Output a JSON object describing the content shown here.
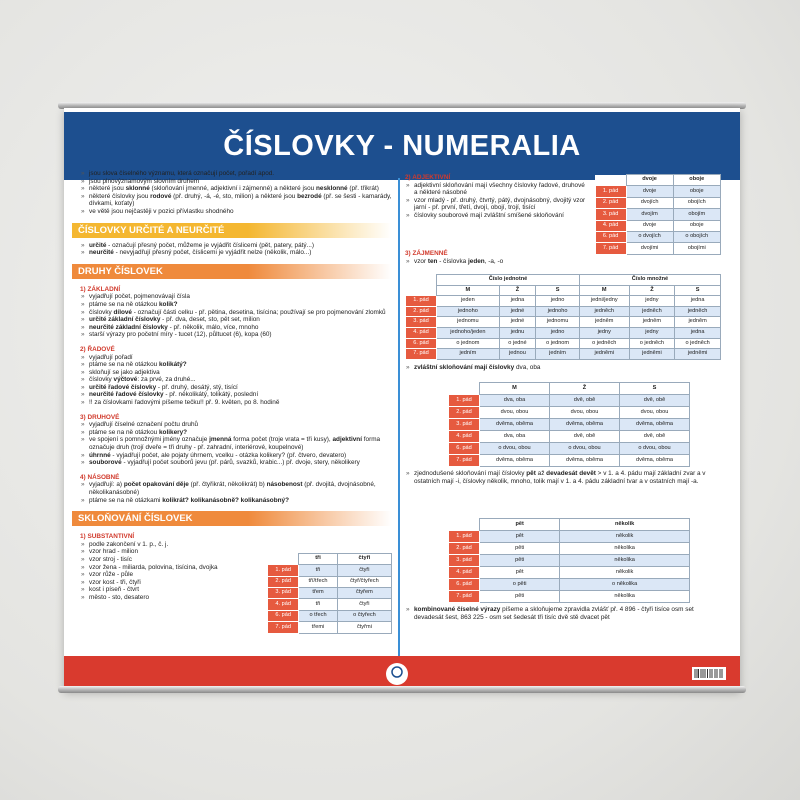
{
  "header": {
    "title": [
      "ČÍSLOVKY",
      " - NUMERALIA"
    ]
  },
  "left": [
    {
      "bullets": [
        [
          "jsou slova číselného významu, která označují počet, pořadí apod."
        ],
        [
          "jsou plnovýznamovým slovním druhem"
        ],
        [
          "některé jsou ",
          "sklonné",
          " (skloňování jmenné, adjektivní i zájmenné) a některé jsou ",
          "nesklonné",
          " (př. třikrát)"
        ],
        [
          "některé číslovky jsou ",
          "rodové",
          " (př. druhý, -á, -é, sto, milion) a některé jsou ",
          "bezrodé",
          " (př. se šesti - kamarády, dívkami, koťaty)"
        ],
        [
          "ve větě jsou nejčastěji v pozici přívlastku shodného"
        ]
      ]
    },
    {
      "heading": "ČÍSLOVKY URČITÉ A NEURČITÉ",
      "color": "#f4b731"
    },
    {
      "bullets": [
        [
          "",
          "určité",
          " - označují přesný počet, můžeme je vyjádřit číslicemi (pět, patery, pátý...)"
        ],
        [
          "",
          "neurčité",
          " - nevyjadřují přesný počet, číslicemi je vyjádřit nelze (několik, málo...)"
        ]
      ]
    },
    {
      "heading": "DRUHY ČÍSLOVEK",
      "color": "#ef8a3c"
    },
    {
      "sub": "1) ZÁKLADNÍ"
    },
    {
      "bullets": [
        [
          "vyjadřují počet, pojmenovávají čísla"
        ],
        [
          "ptáme se na ně otázkou ",
          "kolik?"
        ],
        [
          "číslovky ",
          "dílové",
          " - označují části celku - př. pětina, desetina, tisícina; používají se pro pojmenování zlomků"
        ],
        [
          "",
          "určité základní číslovky",
          " - př. dva, deset, sto, pět set, milion"
        ],
        [
          "",
          "neurčité základní číslovky",
          " - př. několik, málo, více, mnoho"
        ],
        [
          "starší výrazy pro početní míry - tucet (12), půltucet (6), kopa (60)"
        ]
      ]
    },
    {
      "sub": "2) ŘADOVÉ"
    },
    {
      "bullets": [
        [
          "vyjadřují pořadí"
        ],
        [
          "ptáme se na ně otázkou ",
          "kolikátý?"
        ],
        [
          "skloňují se jako adjektiva"
        ],
        [
          "číslovky ",
          "výčtové",
          ": za prvé, za druhé..."
        ],
        [
          "",
          "určité řadové číslovky",
          " - př. druhý, desátý, stý, tisící"
        ],
        [
          "",
          "neurčité řadové číslovky",
          " - př. několikátý, tolikátý, poslední"
        ],
        [
          "!! za číslovkami řadovými píšeme tečku!! př. 9. květen, po 8. hodině"
        ]
      ]
    },
    {
      "sub": "3) DRUHOVÉ"
    },
    {
      "bullets": [
        [
          "vyjadřují číselné označení počtu druhů"
        ],
        [
          "ptáme se na ně otázkou ",
          "kolikery?"
        ],
        [
          "ve spojení s pomnožnými jmény označuje ",
          "jmenná",
          " forma počet (troje vrata = tři kusy), ",
          "adjektivní",
          " forma označuje druh (trojí dveře = tři druhy - př. zahradní, interiérové, koupelnové)"
        ],
        [
          "",
          "úhrnné",
          " - vyjadřují počet, ale pojaty úhrnem, vcelku - otázka kolikery? (př. čtvero, devatero)"
        ],
        [
          "",
          "souborové",
          " - vyjadřují počet souborů jevu (př. párů, svazků, krabic...) př. dvoje, stery, několikery"
        ]
      ]
    },
    {
      "sub": "4) NÁSOBNÉ"
    },
    {
      "bullets": [
        [
          "vyjadřují: a) ",
          "počet opakování děje",
          " (př. čtyřikrát, několikrát) b) ",
          "násobenost",
          " (př. dvojitá, dvojnásobné, několikanásobné)"
        ],
        [
          "ptáme se na ně otázkami ",
          "kolikrát? kolikanásobně? kolikanásobný?"
        ]
      ]
    },
    {
      "heading": "SKLOŇOVÁNÍ ČÍSLOVEK",
      "color": "#ef8a3c"
    },
    {
      "sub": "1) SUBSTANTIVNÍ"
    },
    {
      "bullets": [
        [
          "podle zakončení v 1. p., č. j."
        ],
        [
          "vzor hrad - milion"
        ],
        [
          "vzor stroj - tisíc"
        ],
        [
          "vzor žena - miliarda, polovina, tisícina, dvojka"
        ],
        [
          "vzor růže - půle"
        ],
        [
          "vzor kost - tři, čtyři"
        ],
        [
          "kost i píseň - čtvrt"
        ],
        [
          "město - sto, desatero"
        ]
      ],
      "table": {
        "columns": [
          "tři",
          "čtyři"
        ],
        "rows": [
          {
            "case": "1. pád",
            "cells": [
              "tři",
              "čtyři"
            ]
          },
          {
            "case": "2. pád",
            "cells": [
              "tří/třech",
              "čtyř/čtyřech"
            ]
          },
          {
            "case": "3. pád",
            "cells": [
              "třem",
              "čtyřem"
            ]
          },
          {
            "case": "4. pád",
            "cells": [
              "tři",
              "čtyři"
            ]
          },
          {
            "case": "6. pád",
            "cells": [
              "o třech",
              "o čtyřech"
            ]
          },
          {
            "case": "7. pád",
            "cells": [
              "třemi",
              "čtyřmi"
            ]
          }
        ]
      }
    }
  ],
  "right": [
    {
      "sub": "2) ADJEKTIVNÍ",
      "bullets": [
        [
          "adjektivní skloňování mají všechny číslovky řadové, druhové a některé násobné"
        ],
        [
          "vzor mladý - př. druhý, čtvrtý, pátý, dvojnásobný, dvojitý vzor jarní - př. první, třetí, dvojí, obojí, trojí, tisící"
        ],
        [
          "číslovky souborové mají zvláštní smíšené skloňování"
        ]
      ],
      "table": {
        "columns": [
          "dvoje",
          "oboje"
        ],
        "rows": [
          {
            "case": "1. pád",
            "cells": [
              "dvoje",
              "oboje"
            ]
          },
          {
            "case": "2. pád",
            "cells": [
              "dvojích",
              "obojích"
            ]
          },
          {
            "case": "3. pád",
            "cells": [
              "dvojím",
              "obojím"
            ]
          },
          {
            "case": "4. pád",
            "cells": [
              "dvoje",
              "oboje"
            ]
          },
          {
            "case": "6. pád",
            "cells": [
              "o dvojích",
              "o obojích"
            ]
          },
          {
            "case": "7. pád",
            "cells": [
              "dvojími",
              "obojími"
            ]
          }
        ]
      }
    },
    {
      "sub": "3) ZÁJMENNÉ"
    },
    {
      "bullets": [
        [
          "vzor ",
          "ten",
          " - číslovka ",
          "jeden",
          ", -a, -o"
        ]
      ]
    },
    {
      "table": {
        "groups": [
          "Číslo jednotné",
          "Číslo množné"
        ],
        "columns": [
          "M",
          "Ž",
          "S",
          "M",
          "Ž",
          "S"
        ],
        "rows": [
          {
            "case": "1. pád",
            "cells": [
              "jeden",
              "jedna",
              "jedno",
              "jedni/jedny",
              "jedny",
              "jedna"
            ]
          },
          {
            "case": "2. pád",
            "cells": [
              "jednoho",
              "jedné",
              "jednoho",
              "jedněch",
              "jedněch",
              "jedněch"
            ]
          },
          {
            "case": "3. pád",
            "cells": [
              "jednomu",
              "jedné",
              "jednomu",
              "jedněm",
              "jedněm",
              "jedněm"
            ]
          },
          {
            "case": "4. pád",
            "cells": [
              "jednoho/jeden",
              "jednu",
              "jedno",
              "jedny",
              "jedny",
              "jedna"
            ]
          },
          {
            "case": "6. pád",
            "cells": [
              "o jednom",
              "o jedné",
              "o jednom",
              "o jedněch",
              "o jedněch",
              "o jedněch"
            ]
          },
          {
            "case": "7. pád",
            "cells": [
              "jedním",
              "jednou",
              "jedním",
              "jedněmi",
              "jedněmi",
              "jedněmi"
            ]
          }
        ]
      }
    },
    {
      "bullets": [
        [
          "",
          "zvláštní skloňování mají číslovky",
          " dva, oba"
        ]
      ]
    },
    {
      "table": {
        "columns": [
          "M",
          "Ž",
          "S"
        ],
        "rows": [
          {
            "case": "1. pád",
            "cells": [
              "dva, oba",
              "dvě, obě",
              "dvě, obě"
            ]
          },
          {
            "case": "2. pád",
            "cells": [
              "dvou, obou",
              "dvou, obou",
              "dvou, obou"
            ]
          },
          {
            "case": "3. pád",
            "cells": [
              "dvěma, oběma",
              "dvěma, oběma",
              "dvěma, oběma"
            ]
          },
          {
            "case": "4. pád",
            "cells": [
              "dva, oba",
              "dvě, obě",
              "dvě, obě"
            ]
          },
          {
            "case": "6. pád",
            "cells": [
              "o dvou, obou",
              "o dvou, obou",
              "o dvou, obou"
            ]
          },
          {
            "case": "7. pád",
            "cells": [
              "dvěma, oběma",
              "dvěma, oběma",
              "dvěma, oběma"
            ]
          }
        ]
      }
    },
    {
      "bullets": [
        [
          "zjednodušené skloňování mají číslovky ",
          "pět",
          " až ",
          "devadesát devět",
          " > v 1. a 4. pádu mají základní zvar a v ostatních mají -i, číslovky několik, mnoho, tolik mají v 1. a 4. pádu základní tvar a v ostatních mají -a."
        ]
      ]
    },
    {
      "table": {
        "columns": [
          "pět",
          "několik"
        ],
        "rows": [
          {
            "case": "1. pád",
            "cells": [
              "pět",
              "několik"
            ]
          },
          {
            "case": "2. pád",
            "cells": [
              "pěti",
              "několika"
            ]
          },
          {
            "case": "3. pád",
            "cells": [
              "pěti",
              "několika"
            ]
          },
          {
            "case": "4. pád",
            "cells": [
              "pět",
              "několik"
            ]
          },
          {
            "case": "6. pád",
            "cells": [
              "o pěti",
              "o několika"
            ]
          },
          {
            "case": "7. pád",
            "cells": [
              "pěti",
              "několika"
            ]
          }
        ]
      }
    },
    {
      "bullets": [
        [
          "",
          "kombinované číselné výrazy",
          " píšeme a skloňujeme zpravidla zvlášť př. 4 896 - čtyři tisíce osm set devadesát šest, 863 225 - osm set šedesát tři tisíc dvě stě dvacet pět"
        ]
      ]
    }
  ]
}
